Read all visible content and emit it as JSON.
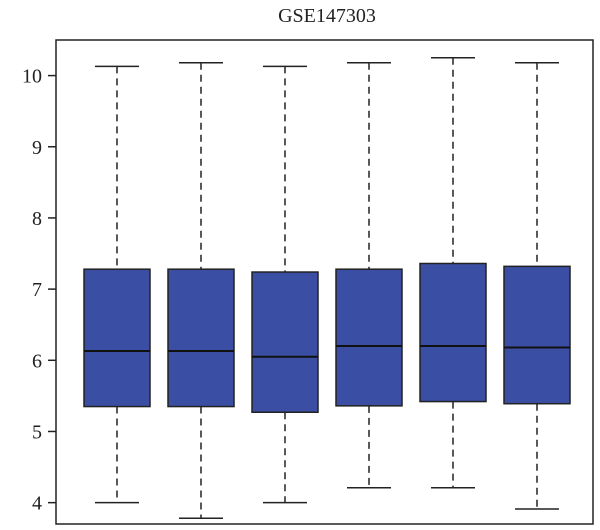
{
  "chart_data": {
    "type": "boxplot",
    "title": "GSE147303",
    "xlabel": "",
    "ylabel": "",
    "ylim": [
      3.7,
      10.5
    ],
    "y_ticks": [
      4,
      5,
      6,
      7,
      8,
      9,
      10
    ],
    "box_color": "#3a4fa3",
    "series": [
      {
        "min": 4.0,
        "q1": 5.35,
        "median": 6.13,
        "q3": 7.28,
        "max": 10.13
      },
      {
        "min": 3.78,
        "q1": 5.35,
        "median": 6.13,
        "q3": 7.28,
        "max": 10.18
      },
      {
        "min": 4.0,
        "q1": 5.27,
        "median": 6.05,
        "q3": 7.24,
        "max": 10.13
      },
      {
        "min": 4.21,
        "q1": 5.36,
        "median": 6.2,
        "q3": 7.28,
        "max": 10.18
      },
      {
        "min": 4.21,
        "q1": 5.42,
        "median": 6.2,
        "q3": 7.36,
        "max": 10.25
      },
      {
        "min": 3.91,
        "q1": 5.39,
        "median": 6.18,
        "q3": 7.32,
        "max": 10.18
      }
    ]
  }
}
